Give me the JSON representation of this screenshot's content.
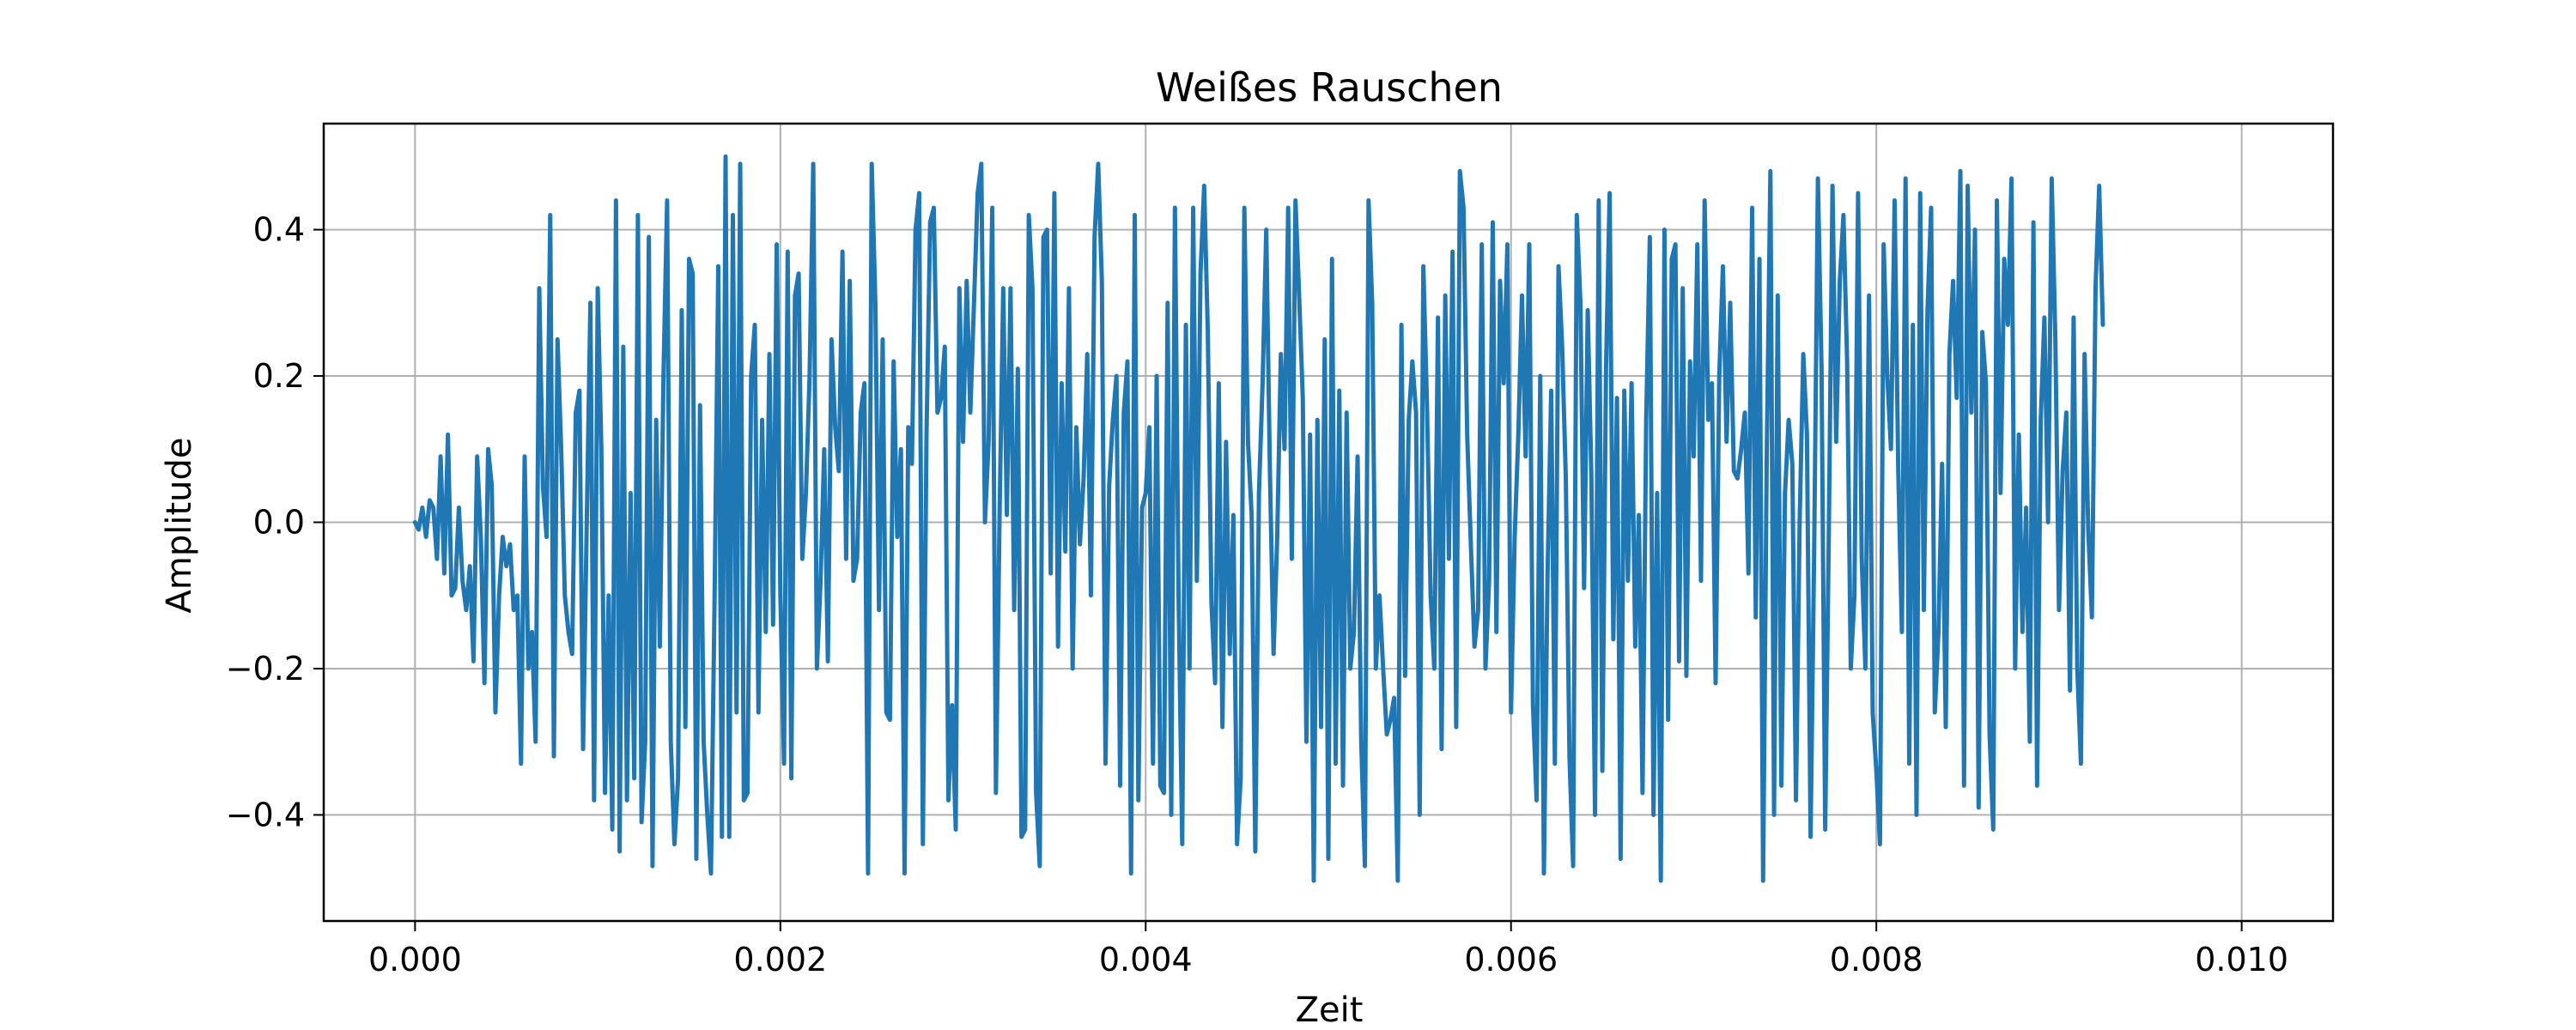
{
  "chart_data": {
    "type": "line",
    "title": "Weißes Rauschen",
    "xlabel": "Zeit",
    "ylabel": "Amplitude",
    "xlim": [
      -0.0005,
      0.0105
    ],
    "ylim": [
      -0.545,
      0.545
    ],
    "grid": true,
    "legend": "none",
    "x_ticks": [
      {
        "value": 0.0,
        "label": "0.000"
      },
      {
        "value": 0.002,
        "label": "0.002"
      },
      {
        "value": 0.004,
        "label": "0.004"
      },
      {
        "value": 0.006,
        "label": "0.006"
      },
      {
        "value": 0.008,
        "label": "0.008"
      },
      {
        "value": 0.01,
        "label": "0.010"
      }
    ],
    "y_ticks": [
      {
        "value": -0.4,
        "label": "−0.4"
      },
      {
        "value": -0.2,
        "label": "−0.2"
      },
      {
        "value": 0.0,
        "label": "0.0"
      },
      {
        "value": 0.2,
        "label": "0.2"
      },
      {
        "value": 0.4,
        "label": "0.4"
      }
    ],
    "series": [
      {
        "color": "#1f77b4",
        "x_start": 0.0,
        "x_step": 2e-05,
        "values": [
          0.0,
          -0.01,
          0.02,
          -0.02,
          0.03,
          0.02,
          -0.05,
          0.09,
          -0.07,
          0.12,
          -0.1,
          -0.09,
          0.02,
          -0.08,
          -0.12,
          -0.06,
          -0.19,
          0.09,
          -0.02,
          -0.22,
          0.1,
          0.05,
          -0.26,
          -0.1,
          -0.02,
          -0.06,
          -0.03,
          -0.12,
          -0.1,
          -0.33,
          0.09,
          -0.2,
          -0.15,
          -0.3,
          0.32,
          0.05,
          -0.02,
          0.42,
          -0.32,
          0.25,
          0.1,
          -0.1,
          -0.15,
          -0.18,
          0.15,
          0.18,
          -0.31,
          0.0,
          0.3,
          -0.38,
          0.32,
          0.1,
          -0.37,
          -0.1,
          -0.42,
          0.44,
          -0.45,
          0.24,
          -0.38,
          0.04,
          -0.35,
          0.42,
          -0.41,
          -0.3,
          0.39,
          -0.47,
          0.14,
          -0.17,
          0.2,
          0.44,
          -0.3,
          -0.44,
          -0.35,
          0.29,
          -0.28,
          0.36,
          0.34,
          -0.46,
          0.16,
          -0.3,
          -0.4,
          -0.48,
          -0.1,
          0.35,
          -0.43,
          0.5,
          -0.43,
          0.42,
          -0.26,
          0.49,
          -0.38,
          -0.37,
          0.2,
          0.27,
          -0.26,
          0.14,
          -0.15,
          0.23,
          -0.14,
          0.38,
          -0.1,
          -0.33,
          0.37,
          -0.35,
          0.31,
          0.34,
          -0.05,
          0.04,
          0.2,
          0.49,
          -0.2,
          -0.08,
          0.1,
          -0.19,
          0.25,
          0.13,
          0.07,
          0.37,
          -0.05,
          0.33,
          -0.08,
          -0.05,
          0.15,
          0.19,
          -0.48,
          0.49,
          0.3,
          -0.12,
          0.25,
          -0.26,
          -0.27,
          0.22,
          -0.02,
          0.1,
          -0.48,
          0.13,
          0.08,
          0.4,
          0.45,
          -0.44,
          0.12,
          0.41,
          0.43,
          0.15,
          0.17,
          0.24,
          -0.38,
          -0.25,
          -0.42,
          0.32,
          0.11,
          0.33,
          0.15,
          0.3,
          0.45,
          0.49,
          0.0,
          0.11,
          0.43,
          -0.37,
          0.01,
          0.32,
          0.01,
          0.32,
          -0.12,
          0.21,
          -0.43,
          -0.42,
          0.42,
          0.32,
          -0.37,
          -0.47,
          0.39,
          0.4,
          -0.07,
          0.45,
          -0.17,
          0.19,
          -0.04,
          0.32,
          -0.2,
          0.13,
          -0.03,
          0.06,
          0.23,
          -0.1,
          0.39,
          0.49,
          0.33,
          -0.33,
          0.05,
          0.14,
          0.2,
          -0.36,
          0.15,
          0.22,
          -0.48,
          0.42,
          -0.38,
          0.02,
          0.04,
          0.13,
          -0.33,
          0.2,
          -0.36,
          -0.37,
          0.3,
          -0.4,
          0.43,
          -0.1,
          -0.44,
          0.27,
          -0.2,
          0.43,
          -0.08,
          0.34,
          0.46,
          0.26,
          -0.11,
          -0.22,
          0.19,
          -0.28,
          0.11,
          -0.18,
          0.01,
          -0.44,
          -0.35,
          0.43,
          0.11,
          0.01,
          -0.45,
          0.04,
          0.19,
          0.4,
          0.07,
          -0.18,
          -0.02,
          0.23,
          0.1,
          0.43,
          -0.05,
          0.44,
          0.31,
          0.17,
          -0.3,
          0.12,
          -0.49,
          0.14,
          -0.28,
          0.25,
          -0.46,
          0.36,
          -0.33,
          0.18,
          -0.36,
          0.15,
          -0.2,
          -0.15,
          0.09,
          -0.3,
          -0.47,
          0.44,
          0.3,
          -0.2,
          -0.1,
          -0.2,
          -0.29,
          -0.27,
          -0.24,
          -0.49,
          0.27,
          -0.21,
          0.14,
          0.22,
          0.15,
          -0.4,
          0.35,
          0.16,
          -0.1,
          -0.2,
          0.28,
          -0.31,
          0.31,
          -0.05,
          0.37,
          -0.28,
          0.48,
          0.43,
          0.12,
          -0.03,
          -0.17,
          -0.12,
          0.38,
          -0.2,
          -0.08,
          0.41,
          -0.15,
          0.33,
          0.19,
          0.38,
          -0.26,
          -0.02,
          0.12,
          0.31,
          0.09,
          0.38,
          -0.25,
          -0.38,
          0.2,
          -0.48,
          -0.07,
          0.18,
          -0.33,
          0.35,
          0.24,
          0.06,
          -0.32,
          -0.47,
          0.42,
          0.3,
          -0.09,
          0.29,
          0.06,
          -0.4,
          0.44,
          -0.34,
          0.21,
          0.45,
          -0.16,
          0.17,
          -0.46,
          0.18,
          -0.08,
          0.19,
          -0.17,
          0.01,
          -0.37,
          0.14,
          0.39,
          -0.4,
          0.04,
          -0.49,
          0.4,
          -0.27,
          0.36,
          0.38,
          -0.19,
          0.32,
          -0.21,
          0.22,
          0.09,
          0.38,
          -0.08,
          0.44,
          0.14,
          0.19,
          -0.22,
          0.2,
          0.35,
          0.11,
          0.3,
          0.07,
          0.06,
          0.1,
          0.15,
          -0.07,
          0.43,
          -0.13,
          0.36,
          -0.49,
          0.09,
          0.48,
          -0.4,
          0.31,
          -0.36,
          0.04,
          0.14,
          0.08,
          -0.38,
          0.0,
          0.23,
          0.12,
          -0.43,
          -0.03,
          0.47,
          0.21,
          -0.42,
          -0.01,
          0.46,
          0.11,
          0.33,
          0.42,
          0.22,
          -0.2,
          -0.1,
          0.45,
          -0.05,
          -0.2,
          0.31,
          -0.26,
          -0.34,
          -0.44,
          0.38,
          0.2,
          0.1,
          0.44,
          0.07,
          -0.15,
          0.47,
          -0.33,
          0.27,
          -0.4,
          0.45,
          -0.12,
          0.29,
          0.43,
          -0.26,
          -0.15,
          0.08,
          -0.28,
          0.23,
          0.33,
          0.17,
          0.48,
          -0.36,
          0.46,
          0.15,
          0.4,
          -0.39,
          0.26,
          0.19,
          -0.29,
          -0.42,
          0.44,
          0.04,
          0.36,
          0.27,
          0.47,
          -0.2,
          0.12,
          -0.15,
          0.02,
          -0.3,
          0.41,
          -0.36,
          0.14,
          0.28,
          0.0,
          0.47,
          0.25,
          -0.12,
          0.07,
          0.15,
          -0.23,
          0.28,
          -0.2,
          -0.33,
          0.23,
          -0.01,
          -0.13,
          0.32,
          0.46,
          0.27
        ]
      }
    ]
  }
}
